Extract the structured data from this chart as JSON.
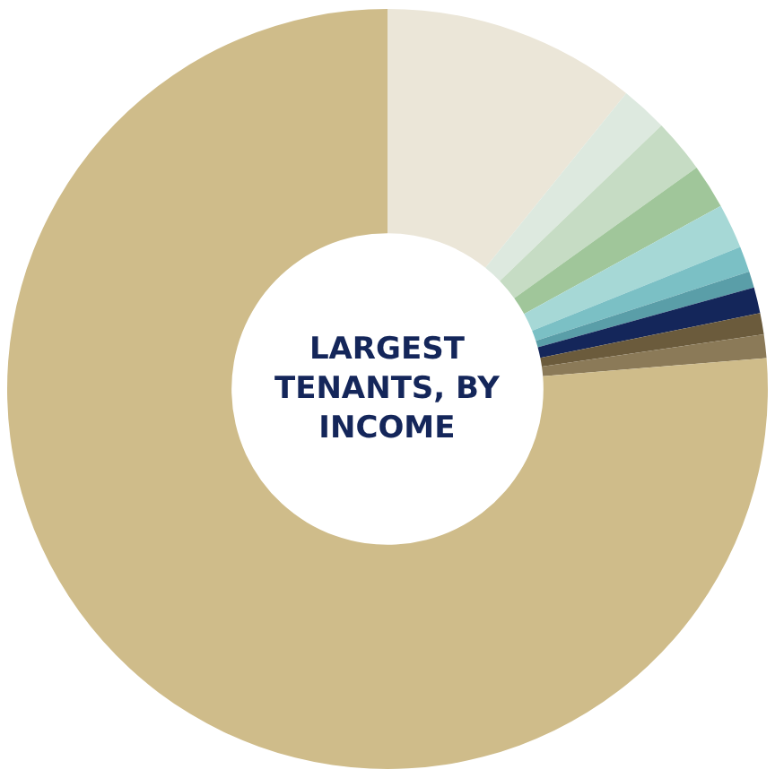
{
  "chart_data": {
    "type": "donut",
    "title": "LARGEST\nTENANTS, BY\nINCOME",
    "categories": [
      null,
      null,
      null,
      null,
      null,
      null,
      null,
      null,
      null,
      null,
      null
    ],
    "values": [
      10.8,
      2.0,
      2.3,
      1.9,
      1.9,
      1.1,
      0.7,
      1.1,
      0.9,
      1.0,
      76.3
    ],
    "colors": [
      "#ebe6d8",
      "#dde9df",
      "#c6dcc4",
      "#a0c69a",
      "#a6d8d6",
      "#7bc0c5",
      "#5a9ea8",
      "#14265a",
      "#6b5b3c",
      "#8b7a58",
      "#cfbc8a"
    ],
    "legend": false
  }
}
